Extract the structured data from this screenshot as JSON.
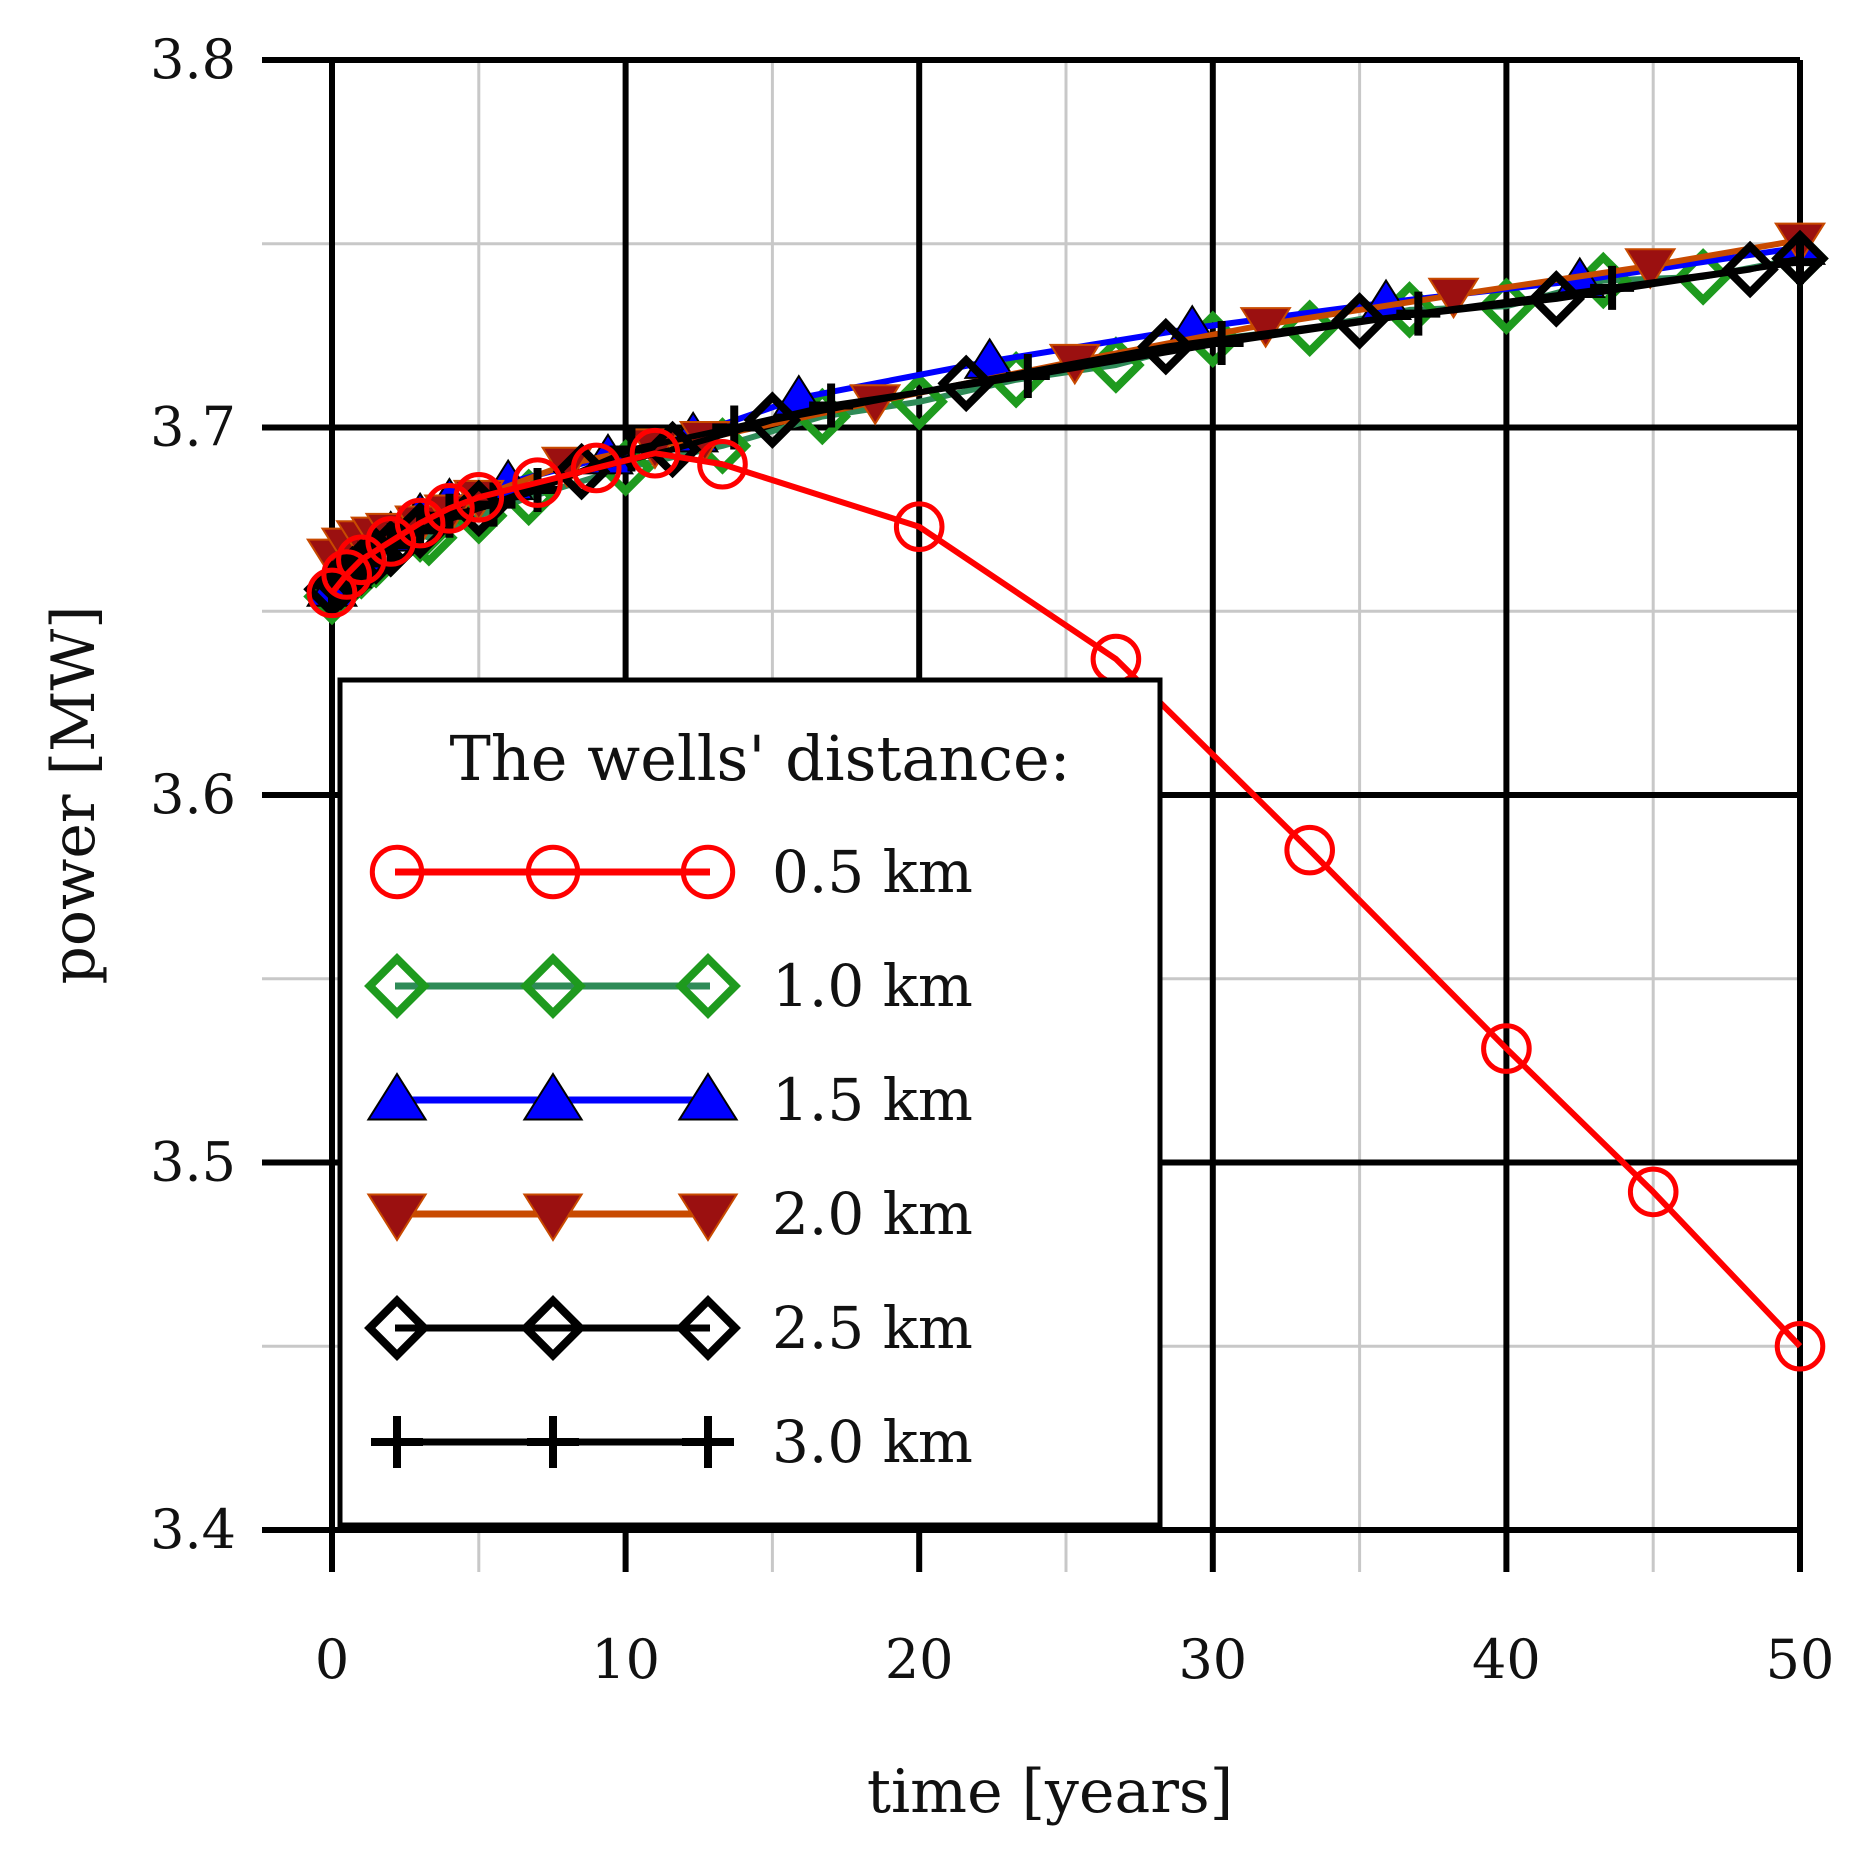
{
  "chart_data": {
    "type": "line",
    "title": "",
    "xlabel": "time [years]",
    "ylabel": "power [MW]",
    "xlim": [
      0,
      50
    ],
    "ylim": [
      3.4,
      3.8
    ],
    "x_ticks": [
      0,
      10,
      20,
      30,
      40,
      50
    ],
    "x_tick_labels": [
      "0",
      "10",
      "20",
      "30",
      "40",
      "50"
    ],
    "y_ticks": [
      3.4,
      3.5,
      3.6,
      3.7,
      3.8
    ],
    "y_tick_labels": [
      "3.4",
      "3.5",
      "3.6",
      "3.7",
      "3.8"
    ],
    "grid": true,
    "legend": {
      "title": "The wells' distance:",
      "position": "lower-left"
    },
    "series": [
      {
        "name": "0.5 km",
        "color": "#ff0000",
        "marker": "circle-open",
        "x": [
          0,
          0.5,
          1,
          2,
          3,
          4,
          5,
          7,
          9,
          11,
          13.3,
          20,
          26.7,
          33.3,
          40,
          45,
          50
        ],
        "y": [
          3.655,
          3.66,
          3.664,
          3.669,
          3.674,
          3.678,
          3.681,
          3.685,
          3.689,
          3.693,
          3.69,
          3.673,
          3.637,
          3.585,
          3.531,
          3.492,
          3.45
        ]
      },
      {
        "name": "1.0 km",
        "color": "#2e8b57",
        "marker_color": "#1e9a1e",
        "marker": "diamond-open",
        "x": [
          0,
          0.5,
          1,
          1.5,
          2,
          3,
          3.3,
          5,
          6.7,
          10,
          13.3,
          16.7,
          20,
          23.3,
          26.7,
          30,
          33.3,
          36.7,
          40,
          43.3,
          46.7,
          50
        ],
        "y": [
          3.654,
          3.658,
          3.661,
          3.664,
          3.667,
          3.671,
          3.67,
          3.676,
          3.681,
          3.689,
          3.695,
          3.703,
          3.707,
          3.713,
          3.717,
          3.724,
          3.727,
          3.732,
          3.733,
          3.74,
          3.741,
          3.746
        ]
      },
      {
        "name": "1.5 km",
        "color": "#0000ff",
        "marker_color": "#0000ff",
        "marker": "triangle-up",
        "x": [
          0,
          0.5,
          1,
          2,
          3,
          4,
          6,
          9.4,
          12.3,
          15.9,
          22.4,
          29.3,
          35.9,
          42.5,
          50
        ],
        "y": [
          3.656,
          3.661,
          3.665,
          3.671,
          3.676,
          3.68,
          3.685,
          3.692,
          3.698,
          3.708,
          3.718,
          3.727,
          3.734,
          3.74,
          3.749
        ]
      },
      {
        "name": "2.0 km",
        "color": "#c84a00",
        "marker_color": "#9b1010",
        "marker": "triangle-down",
        "x": [
          0,
          0.5,
          1,
          1.5,
          2,
          3,
          4,
          5,
          8,
          11,
          12.7,
          18.5,
          25.3,
          31.8,
          38.2,
          44.9,
          50
        ],
        "y": [
          3.665,
          3.668,
          3.67,
          3.671,
          3.672,
          3.674,
          3.677,
          3.681,
          3.69,
          3.695,
          3.697,
          3.707,
          3.718,
          3.728,
          3.736,
          3.744,
          3.751
        ]
      },
      {
        "name": "2.5 km",
        "color": "#000000",
        "marker_color": "#000000",
        "marker": "diamond-open",
        "x": [
          0,
          0.3,
          0.7,
          1,
          1.5,
          2,
          3,
          5,
          8.5,
          11.6,
          15,
          21.6,
          28.4,
          35,
          41.7,
          48.3,
          50
        ],
        "y": [
          3.656,
          3.658,
          3.66,
          3.662,
          3.665,
          3.667,
          3.672,
          3.678,
          3.688,
          3.694,
          3.702,
          3.712,
          3.722,
          3.729,
          3.735,
          3.743,
          3.746
        ]
      },
      {
        "name": "3.0 km",
        "color": "#000000",
        "marker_color": "#000000",
        "marker": "plus",
        "x": [
          0,
          0.5,
          1,
          2,
          3,
          4,
          5.5,
          7,
          10.2,
          13.7,
          17,
          23.7,
          30.3,
          37,
          43.6,
          50
        ],
        "y": [
          3.657,
          3.66,
          3.663,
          3.668,
          3.672,
          3.676,
          3.679,
          3.683,
          3.694,
          3.7,
          3.706,
          3.714,
          3.723,
          3.731,
          3.738,
          3.745
        ]
      }
    ]
  }
}
